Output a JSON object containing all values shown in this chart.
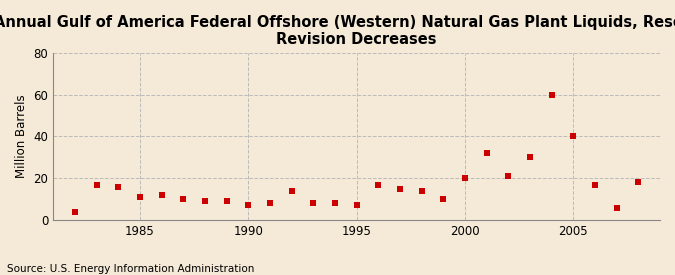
{
  "title": "Annual Gulf of America Federal Offshore (Western) Natural Gas Plant Liquids, Reserves\nRevision Decreases",
  "ylabel": "Million Barrels",
  "source": "Source: U.S. Energy Information Administration",
  "background_color": "#f5ead8",
  "marker_color": "#cc0000",
  "grid_color": "#bbbbbb",
  "years": [
    1982,
    1983,
    1984,
    1985,
    1986,
    1987,
    1988,
    1989,
    1990,
    1991,
    1992,
    1993,
    1994,
    1995,
    1996,
    1997,
    1998,
    1999,
    2000,
    2001,
    2002,
    2003,
    2004,
    2005,
    2006,
    2007,
    2008
  ],
  "values": [
    4,
    17,
    16,
    11,
    12,
    10,
    9,
    9,
    7,
    8,
    14,
    8,
    8,
    7,
    17,
    15,
    14,
    10,
    20,
    32,
    21,
    30,
    60,
    40,
    17,
    6,
    18
  ],
  "ylim": [
    0,
    80
  ],
  "xlim": [
    1981,
    2009
  ],
  "yticks": [
    0,
    20,
    40,
    60,
    80
  ],
  "xticks": [
    1985,
    1990,
    1995,
    2000,
    2005
  ],
  "title_fontsize": 10.5,
  "label_fontsize": 8.5,
  "tick_fontsize": 8.5,
  "source_fontsize": 7.5,
  "marker_size": 4
}
